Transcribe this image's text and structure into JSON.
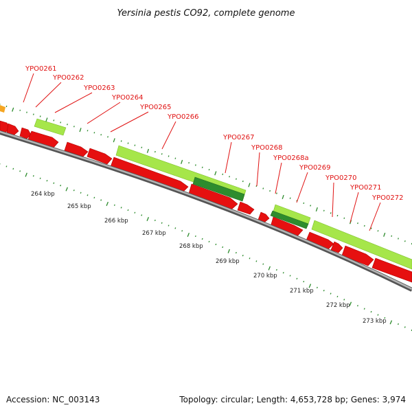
{
  "title": "Yersinia pestis CO92, complete genome",
  "footer": {
    "accession": "Accession: NC_003143",
    "summary": "Topology: circular; Length: 4,653,728 bp; Genes: 3,974"
  },
  "colors": {
    "backbone": "#8c8c8c",
    "cds_forward": "#e61010",
    "cds_light": "#a6e64a",
    "cds_dark": "#2e8c2e",
    "partial_orange": "#f5a623",
    "tick": "#2a8a2a",
    "label": "#e01010"
  },
  "gene_labels": [
    "YPO0261",
    "YPO0262",
    "YPO0263",
    "YPO0264",
    "YPO0265",
    "YPO0266",
    "YPO0267",
    "YPO0268",
    "YPO0268a",
    "YPO0269",
    "YPO0270",
    "YPO0271",
    "YPO0272"
  ],
  "scale_labels": [
    "264 kbp",
    "265 kbp",
    "266 kbp",
    "267 kbp",
    "268 kbp",
    "269 kbp",
    "270 kbp",
    "271 kbp",
    "272 kbp",
    "273 kbp"
  ]
}
